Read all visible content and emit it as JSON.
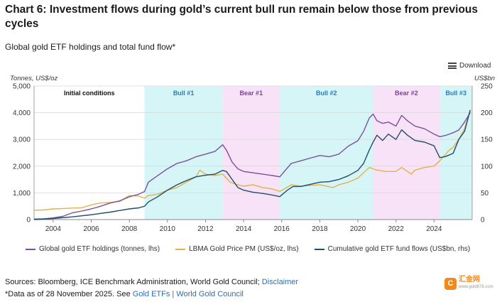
{
  "title": "Chart 6: Investment flows during gold’s current bull run remain below those from previous cycles",
  "subtitle": "Global gold ETF holdings and total fund flow*",
  "download_label": "Download",
  "sources_text": "Sources: Bloomberg, ICE Benchmark Administration, World Gold Council; ",
  "disclaimer_link": "Disclaimer",
  "note_text": "*Data as of 28 November 2025. See ",
  "note_link": "Gold ETFs | World Gold Council",
  "logo": {
    "name": "汇金网",
    "url": "www.gold678.com",
    "mark": "C"
  },
  "colors": {
    "holdings": "#7b4f9d",
    "price": "#e2b24a",
    "flows": "#1f4e6b",
    "bull": "#d6f5f7",
    "bear": "#f8e2f7"
  },
  "chart_data": {
    "type": "line",
    "title": "Global gold ETF holdings and total fund flow*",
    "ylabel_left": "Tonnes, US$/oz",
    "ylabel_right": "US$bn",
    "xlim": [
      2003,
      2026
    ],
    "ylim_left": [
      0,
      5000
    ],
    "ylim_right": [
      0,
      250
    ],
    "x_ticks": [
      2004,
      2006,
      2008,
      2010,
      2012,
      2014,
      2016,
      2018,
      2020,
      2022,
      2024
    ],
    "y_ticks_left": [
      "0",
      "1,000",
      "2,000",
      "3,000",
      "4,000",
      "5,000"
    ],
    "y_ticks_right": [
      "0",
      "50",
      "100",
      "150",
      "200",
      "250"
    ],
    "grid": true,
    "legend": "bottom",
    "regimes": [
      {
        "label": "Initial conditions",
        "start": 2003.0,
        "end": 2008.8,
        "kind": "initial"
      },
      {
        "label": "Bull #1",
        "start": 2008.8,
        "end": 2012.9,
        "kind": "bull"
      },
      {
        "label": "Bear #1",
        "start": 2012.9,
        "end": 2015.9,
        "kind": "bear"
      },
      {
        "label": "Bull #2",
        "start": 2015.9,
        "end": 2020.8,
        "kind": "bull"
      },
      {
        "label": "Bear #2",
        "start": 2020.8,
        "end": 2024.3,
        "kind": "bear"
      },
      {
        "label": "Bull #3",
        "start": 2024.3,
        "end": 2026.0,
        "kind": "bull"
      }
    ],
    "series": [
      {
        "name": "Global gold ETF holdings (tonnes, lhs)",
        "axis": "left",
        "x": [
          2003.0,
          2003.5,
          2004.0,
          2004.5,
          2005.0,
          2005.5,
          2006.0,
          2006.5,
          2007.0,
          2007.5,
          2008.0,
          2008.5,
          2008.8,
          2009.0,
          2009.3,
          2009.6,
          2010.0,
          2010.5,
          2011.0,
          2011.5,
          2012.0,
          2012.5,
          2012.9,
          2013.1,
          2013.4,
          2013.7,
          2014.0,
          2014.5,
          2015.0,
          2015.5,
          2015.9,
          2016.2,
          2016.5,
          2017.0,
          2017.5,
          2018.0,
          2018.5,
          2019.0,
          2019.5,
          2020.0,
          2020.3,
          2020.6,
          2020.8,
          2021.0,
          2021.3,
          2021.6,
          2022.0,
          2022.3,
          2022.6,
          2023.0,
          2023.5,
          2024.0,
          2024.3,
          2024.6,
          2025.0,
          2025.3,
          2025.6,
          2025.9
        ],
        "values": [
          20,
          30,
          60,
          120,
          250,
          320,
          400,
          500,
          620,
          700,
          850,
          950,
          1050,
          1400,
          1550,
          1700,
          1900,
          2100,
          2200,
          2350,
          2450,
          2550,
          2800,
          2600,
          2150,
          1900,
          1800,
          1750,
          1700,
          1650,
          1600,
          1850,
          2100,
          2200,
          2300,
          2400,
          2350,
          2450,
          2750,
          2950,
          3300,
          3800,
          3950,
          3700,
          3600,
          3650,
          3500,
          3900,
          3700,
          3500,
          3400,
          3200,
          3100,
          3150,
          3250,
          3350,
          3650,
          4000
        ]
      },
      {
        "name": "LBMA Gold Price PM (US$/oz, lhs)",
        "axis": "left",
        "x": [
          2003.0,
          2003.5,
          2004.0,
          2004.5,
          2005.0,
          2005.5,
          2006.0,
          2006.5,
          2007.0,
          2007.5,
          2008.0,
          2008.5,
          2008.8,
          2009.0,
          2009.5,
          2010.0,
          2010.5,
          2011.0,
          2011.5,
          2011.7,
          2012.0,
          2012.5,
          2012.9,
          2013.3,
          2013.7,
          2014.0,
          2014.5,
          2015.0,
          2015.5,
          2015.9,
          2016.5,
          2017.0,
          2017.5,
          2018.0,
          2018.7,
          2019.0,
          2019.5,
          2020.0,
          2020.6,
          2020.8,
          2021.0,
          2021.5,
          2022.0,
          2022.3,
          2022.8,
          2023.0,
          2023.5,
          2024.0,
          2024.3,
          2024.8,
          2025.0,
          2025.3,
          2025.6,
          2025.9
        ],
        "values": [
          350,
          360,
          400,
          410,
          430,
          440,
          550,
          620,
          640,
          680,
          900,
          880,
          800,
          900,
          950,
          1100,
          1200,
          1400,
          1600,
          1850,
          1700,
          1650,
          1700,
          1400,
          1300,
          1250,
          1300,
          1200,
          1150,
          1050,
          1300,
          1250,
          1280,
          1300,
          1200,
          1300,
          1400,
          1550,
          1950,
          1900,
          1850,
          1800,
          1800,
          1950,
          1700,
          1850,
          1950,
          2000,
          2200,
          2600,
          2700,
          3000,
          3400,
          4100
        ]
      },
      {
        "name": "Cumulative gold ETF fund flows (US$bn, rhs)",
        "axis": "right",
        "x": [
          2003.0,
          2004.0,
          2005.0,
          2006.0,
          2007.0,
          2007.5,
          2008.0,
          2008.5,
          2008.8,
          2009.0,
          2009.5,
          2010.0,
          2010.5,
          2011.0,
          2011.5,
          2012.0,
          2012.5,
          2012.9,
          2013.1,
          2013.4,
          2013.7,
          2014.0,
          2014.5,
          2015.0,
          2015.5,
          2015.9,
          2016.3,
          2016.6,
          2017.0,
          2017.5,
          2018.0,
          2018.5,
          2019.0,
          2019.5,
          2020.0,
          2020.3,
          2020.6,
          2020.8,
          2021.0,
          2021.3,
          2021.6,
          2022.0,
          2022.3,
          2022.6,
          2023.0,
          2023.5,
          2024.0,
          2024.3,
          2024.6,
          2025.0,
          2025.3,
          2025.6,
          2025.9
        ],
        "values": [
          0,
          2,
          5,
          9,
          14,
          17,
          20,
          22,
          25,
          33,
          43,
          55,
          65,
          73,
          80,
          83,
          85,
          92,
          90,
          75,
          60,
          55,
          51,
          49,
          46,
          43,
          55,
          62,
          62,
          66,
          70,
          71,
          75,
          82,
          92,
          105,
          130,
          145,
          158,
          148,
          160,
          150,
          168,
          158,
          148,
          145,
          138,
          116,
          118,
          124,
          150,
          165,
          205
        ]
      }
    ]
  }
}
